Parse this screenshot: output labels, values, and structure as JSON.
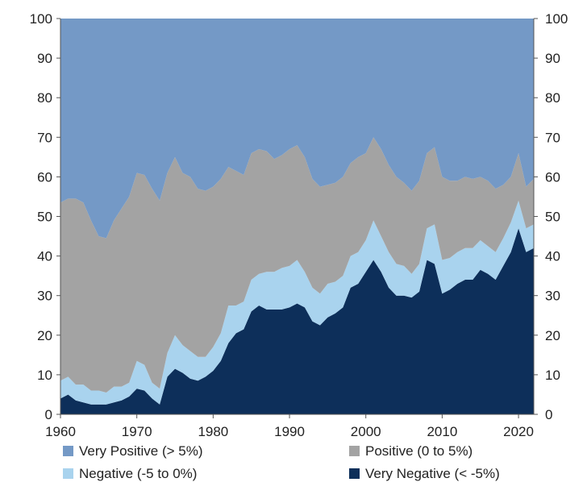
{
  "chart_data": {
    "type": "area",
    "stacked": true,
    "percent_stacked": true,
    "title": "",
    "xlabel": "",
    "ylabel": "",
    "xlim": [
      1960,
      2022
    ],
    "ylim": [
      0,
      100
    ],
    "x_ticks": [
      "1960",
      "1970",
      "1980",
      "1990",
      "2000",
      "2010",
      "2020"
    ],
    "y_ticks": [
      "0",
      "10",
      "20",
      "30",
      "40",
      "50",
      "60",
      "70",
      "80",
      "90",
      "100"
    ],
    "y_ticks_right": [
      "0",
      "10",
      "20",
      "30",
      "40",
      "50",
      "60",
      "70",
      "80",
      "90",
      "100"
    ],
    "legend_position": "bottom",
    "x": [
      1960,
      1961,
      1962,
      1963,
      1964,
      1965,
      1966,
      1967,
      1968,
      1969,
      1970,
      1971,
      1972,
      1973,
      1974,
      1975,
      1976,
      1977,
      1978,
      1979,
      1980,
      1981,
      1982,
      1983,
      1984,
      1985,
      1986,
      1987,
      1988,
      1989,
      1990,
      1991,
      1992,
      1993,
      1994,
      1995,
      1996,
      1997,
      1998,
      1999,
      2000,
      2001,
      2002,
      2003,
      2004,
      2005,
      2006,
      2007,
      2008,
      2009,
      2010,
      2011,
      2012,
      2013,
      2014,
      2015,
      2016,
      2017,
      2018,
      2019,
      2020,
      2021,
      2022
    ],
    "series": [
      {
        "name": "Very Negative (< -5%)",
        "color": "#0d2f5a",
        "values": [
          4,
          5,
          3.5,
          3,
          2.5,
          2.5,
          2.5,
          3,
          3.5,
          4.5,
          6.5,
          6,
          4,
          2.5,
          9.5,
          11.5,
          10.5,
          9,
          8.5,
          9.5,
          11,
          13.5,
          18,
          20.5,
          21.5,
          26,
          27.5,
          26.5,
          26.5,
          26.5,
          27,
          28,
          27,
          23.5,
          22.5,
          24.5,
          25.5,
          27,
          32,
          33,
          36,
          39,
          36,
          32,
          30,
          30,
          29.5,
          31,
          39,
          38,
          30.5,
          31.5,
          33,
          34,
          34,
          36.5,
          35.5,
          34,
          37.5,
          41,
          47,
          41,
          42
        ]
      },
      {
        "name": "Negative (-5 to 0%)",
        "color": "#a9d3ee",
        "values": [
          4.5,
          4.5,
          4,
          4.5,
          3.5,
          3.5,
          3,
          4,
          3.5,
          3.5,
          7,
          6.5,
          4,
          4,
          6,
          8.5,
          7,
          7,
          6,
          5,
          6,
          7,
          9.5,
          7,
          7,
          8,
          8,
          9.5,
          9.5,
          10.5,
          10.5,
          11,
          9,
          8.5,
          8,
          8.5,
          8,
          8,
          8,
          8,
          8,
          10,
          9,
          9,
          8,
          7.5,
          6,
          7,
          8,
          10,
          8.5,
          8,
          8,
          8,
          8,
          7.5,
          7,
          7,
          7,
          7.5,
          7,
          6,
          6
        ]
      },
      {
        "name": "Positive (0 to 5%)",
        "color": "#a3a3a3",
        "values": [
          45,
          45,
          47,
          46,
          43,
          39,
          39,
          42,
          45,
          47,
          47.5,
          48,
          49,
          47.5,
          45.5,
          45,
          43.5,
          44,
          42.5,
          42,
          40.5,
          39,
          35,
          34,
          32,
          32,
          31.5,
          30.5,
          28.5,
          28.5,
          29.5,
          29,
          29,
          27.5,
          27,
          25,
          25,
          25,
          23.5,
          24,
          22,
          21,
          22,
          22,
          22,
          21,
          21,
          21,
          19,
          19.5,
          21,
          19.5,
          18,
          18,
          17.5,
          16,
          16.5,
          16,
          13.5,
          11.5,
          12,
          10.5,
          11.5
        ]
      },
      {
        "name": "Very Positive (> 5%)",
        "color": "#7499c6",
        "values": [
          46.5,
          45.5,
          45.5,
          46.5,
          51,
          55,
          55.5,
          51,
          48,
          45,
          39,
          39.5,
          43,
          46,
          39,
          35,
          39,
          40,
          43,
          43.5,
          42.5,
          40.5,
          37.5,
          38.5,
          39.5,
          34,
          33,
          33.5,
          35.5,
          34.5,
          33,
          32,
          35,
          40.5,
          42.5,
          42,
          41.5,
          40,
          36.5,
          35,
          34,
          30,
          33,
          37,
          40,
          41.5,
          43.5,
          41,
          34,
          32.5,
          40,
          41,
          41,
          40,
          40.5,
          40,
          41,
          43,
          42,
          40,
          34,
          42.5,
          40.5
        ]
      }
    ],
    "legend": [
      {
        "label": "Very Positive (> 5%)",
        "color": "#7499c6"
      },
      {
        "label": "Positive (0 to 5%)",
        "color": "#a3a3a3"
      },
      {
        "label": "Negative (-5 to 0%)",
        "color": "#a9d3ee"
      },
      {
        "label": "Very Negative (< -5%)",
        "color": "#0d2f5a"
      }
    ]
  }
}
